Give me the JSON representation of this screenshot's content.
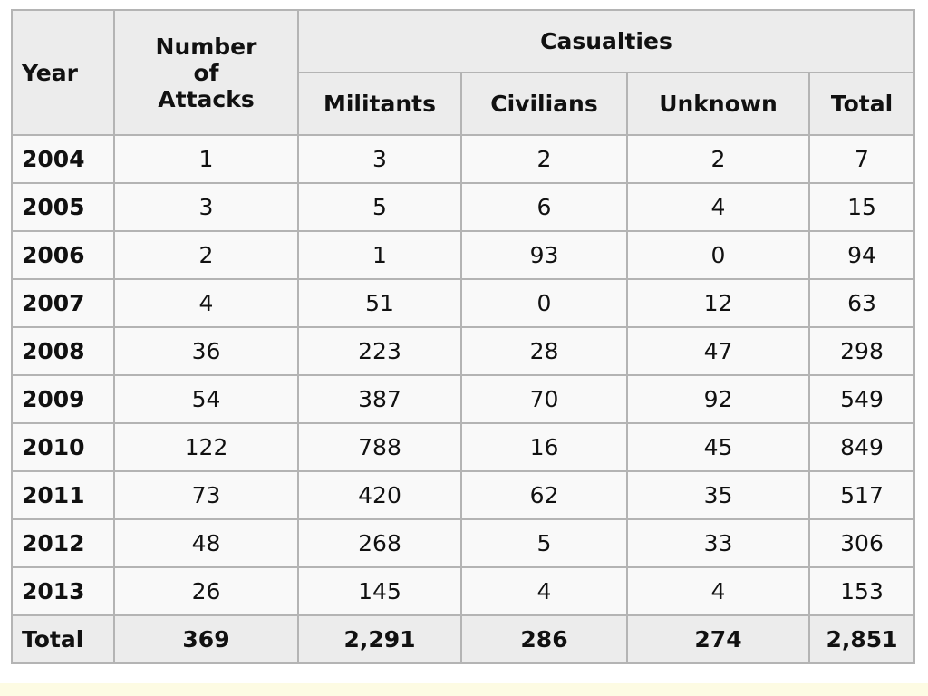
{
  "header": {
    "year": "Year",
    "attacks": [
      "Number",
      "of",
      "Attacks"
    ],
    "casualties": "Casualties",
    "columns": [
      "Militants",
      "Civilians",
      "Unknown",
      "Total"
    ]
  },
  "rows": [
    [
      "2004",
      "1",
      "3",
      "2",
      "2",
      "7"
    ],
    [
      "2005",
      "3",
      "5",
      "6",
      "4",
      "15"
    ],
    [
      "2006",
      "2",
      "1",
      "93",
      "0",
      "94"
    ],
    [
      "2007",
      "4",
      "51",
      "0",
      "12",
      "63"
    ],
    [
      "2008",
      "36",
      "223",
      "28",
      "47",
      "298"
    ],
    [
      "2009",
      "54",
      "387",
      "70",
      "92",
      "549"
    ],
    [
      "2010",
      "122",
      "788",
      "16",
      "45",
      "849"
    ],
    [
      "2011",
      "73",
      "420",
      "62",
      "35",
      "517"
    ],
    [
      "2012",
      "48",
      "268",
      "5",
      "33",
      "306"
    ],
    [
      "2013",
      "26",
      "145",
      "4",
      "4",
      "153"
    ]
  ],
  "total": [
    "Total",
    "369",
    "2,291",
    "286",
    "274",
    "2,851"
  ]
}
